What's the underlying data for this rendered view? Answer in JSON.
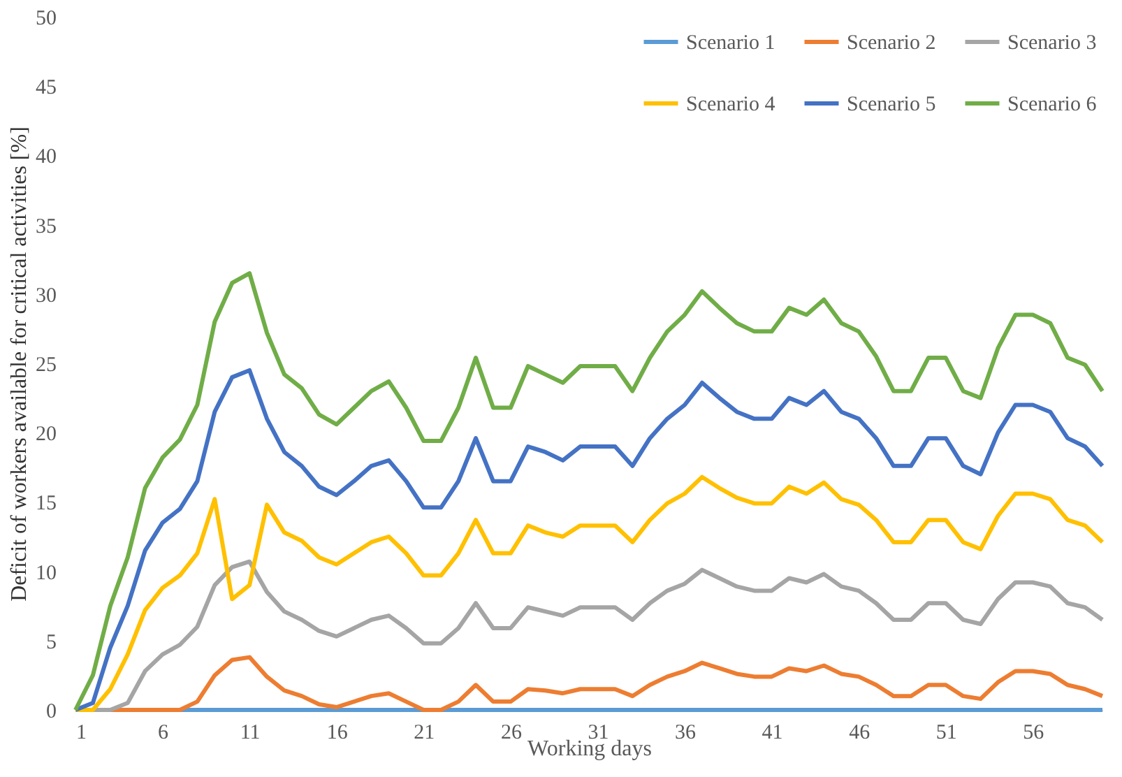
{
  "chart_data": {
    "type": "line",
    "xlabel": "Working days",
    "ylabel": "Deficit of workers available for critical activities [%]",
    "x": [
      1,
      2,
      3,
      4,
      5,
      6,
      7,
      8,
      9,
      10,
      11,
      12,
      13,
      14,
      15,
      16,
      17,
      18,
      19,
      20,
      21,
      22,
      23,
      24,
      25,
      26,
      27,
      28,
      29,
      30,
      31,
      32,
      33,
      34,
      35,
      36,
      37,
      38,
      39,
      40,
      41,
      42,
      43,
      44,
      45,
      46,
      47,
      48,
      49,
      50,
      51,
      52,
      53,
      54,
      55,
      56,
      57,
      58,
      59,
      60
    ],
    "xlim": [
      1,
      60
    ],
    "xticks": [
      1,
      6,
      11,
      16,
      21,
      26,
      31,
      36,
      41,
      46,
      51,
      56
    ],
    "ylim": [
      0,
      50
    ],
    "yticks": [
      0,
      5,
      10,
      15,
      20,
      25,
      30,
      35,
      40,
      45,
      50
    ],
    "grid": false,
    "legend": "top right",
    "marker": "none",
    "line_style": "solid",
    "series": [
      {
        "name": "Scenario 1",
        "color": "#5b9bd5",
        "values": [
          0,
          0,
          0,
          0,
          0,
          0,
          0,
          0,
          0,
          0,
          0,
          0,
          0,
          0,
          0,
          0,
          0,
          0,
          0,
          0,
          0,
          0,
          0,
          0,
          0,
          0,
          0,
          0,
          0,
          0,
          0,
          0,
          0,
          0,
          0,
          0,
          0,
          0,
          0,
          0,
          0,
          0,
          0,
          0,
          0,
          0,
          0,
          0,
          0,
          0,
          0,
          0,
          0,
          0,
          0,
          0,
          0,
          0,
          0,
          0
        ]
      },
      {
        "name": "Scenario 2",
        "color": "#ed7d31",
        "values": [
          0,
          0,
          0,
          0,
          0,
          0,
          0,
          0.6,
          2.5,
          3.6,
          3.8,
          2.4,
          1.4,
          1,
          0.4,
          0.2,
          0.6,
          1,
          1.2,
          0.6,
          0,
          0,
          0.6,
          1.8,
          0.6,
          0.6,
          1.5,
          1.4,
          1.2,
          1.5,
          1.5,
          1.5,
          1,
          1.8,
          2.4,
          2.8,
          3.4,
          3,
          2.6,
          2.4,
          2.4,
          3,
          2.8,
          3.2,
          2.6,
          2.4,
          1.8,
          1,
          1,
          1.8,
          1.8,
          1,
          0.8,
          2,
          2.8,
          2.8,
          2.6,
          1.8,
          1.5,
          1
        ]
      },
      {
        "name": "Scenario 3",
        "color": "#a5a5a5",
        "values": [
          0,
          0,
          0,
          0.5,
          2.8,
          4,
          4.7,
          6,
          9,
          10.3,
          10.7,
          8.5,
          7.1,
          6.5,
          5.7,
          5.3,
          5.9,
          6.5,
          6.8,
          5.9,
          4.8,
          4.8,
          5.9,
          7.7,
          5.9,
          5.9,
          7.4,
          7.1,
          6.8,
          7.4,
          7.4,
          7.4,
          6.5,
          7.7,
          8.6,
          9.1,
          10.1,
          9.5,
          8.9,
          8.6,
          8.6,
          9.5,
          9.2,
          9.8,
          8.9,
          8.6,
          7.7,
          6.5,
          6.5,
          7.7,
          7.7,
          6.5,
          6.2,
          8,
          9.2,
          9.2,
          8.9,
          7.7,
          7.4,
          6.5
        ]
      },
      {
        "name": "Scenario 4",
        "color": "#ffc000",
        "values": [
          0,
          0,
          1.5,
          4,
          7.2,
          8.8,
          9.7,
          11.3,
          15.2,
          8,
          9,
          14.8,
          12.8,
          12.2,
          11,
          10.5,
          11.3,
          12.1,
          12.5,
          11.3,
          9.7,
          9.7,
          11.3,
          13.7,
          11.3,
          11.3,
          13.3,
          12.8,
          12.5,
          13.3,
          13.3,
          13.3,
          12.1,
          13.7,
          14.9,
          15.6,
          16.8,
          16,
          15.3,
          14.9,
          14.9,
          16.1,
          15.6,
          16.4,
          15.2,
          14.8,
          13.7,
          12.1,
          12.1,
          13.7,
          13.7,
          12.1,
          11.6,
          14,
          15.6,
          15.6,
          15.2,
          13.7,
          13.3,
          12.1
        ]
      },
      {
        "name": "Scenario 5",
        "color": "#4472c4",
        "values": [
          0,
          0.5,
          4.5,
          7.5,
          11.5,
          13.5,
          14.5,
          16.5,
          21.5,
          24,
          24.5,
          21,
          18.6,
          17.6,
          16.1,
          15.5,
          16.5,
          17.6,
          18,
          16.5,
          14.6,
          14.6,
          16.5,
          19.6,
          16.5,
          16.5,
          19,
          18.6,
          18,
          19,
          19,
          19,
          17.6,
          19.6,
          21,
          22,
          23.6,
          22.5,
          21.5,
          21,
          21,
          22.5,
          22,
          23,
          21.5,
          21,
          19.6,
          17.6,
          17.6,
          19.6,
          19.6,
          17.6,
          17,
          20,
          22,
          22,
          21.5,
          19.6,
          19,
          17.6
        ]
      },
      {
        "name": "Scenario 6",
        "color": "#70ad47",
        "values": [
          0,
          2.5,
          7.5,
          11,
          16,
          18.2,
          19.5,
          22,
          28,
          30.8,
          31.5,
          27.2,
          24.2,
          23.2,
          21.3,
          20.6,
          21.8,
          23,
          23.7,
          21.8,
          19.4,
          19.4,
          21.8,
          25.4,
          21.8,
          21.8,
          24.8,
          24.2,
          23.6,
          24.8,
          24.8,
          24.8,
          23,
          25.4,
          27.3,
          28.5,
          30.2,
          29,
          27.9,
          27.3,
          27.3,
          29,
          28.5,
          29.6,
          27.9,
          27.3,
          25.5,
          23,
          23,
          25.4,
          25.4,
          23,
          22.5,
          26.1,
          28.5,
          28.5,
          27.9,
          25.4,
          24.9,
          23
        ]
      }
    ]
  }
}
